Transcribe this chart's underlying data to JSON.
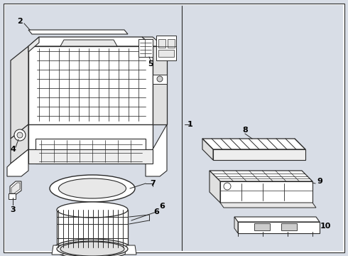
{
  "bg_color": "#d8dde6",
  "white": "#ffffff",
  "line_color": "#2a2a2a",
  "label_color": "#000000",
  "fig_width": 4.9,
  "fig_height": 3.6,
  "dpi": 100,
  "border_color": "#aaaaaa"
}
